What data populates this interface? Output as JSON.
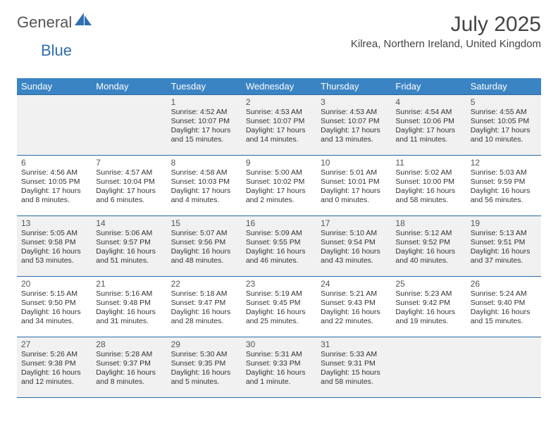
{
  "brand": {
    "part1": "General",
    "part2": "Blue"
  },
  "title": "July 2025",
  "location": "Kilrea, Northern Ireland, United Kingdom",
  "colors": {
    "header_bg": "#3b84c4",
    "header_text": "#ffffff",
    "border": "#2a6aa3",
    "shaded_bg": "#f1f1f1",
    "logo_gray": "#6a6a6a",
    "logo_blue": "#2f6fb0"
  },
  "dow": [
    "Sunday",
    "Monday",
    "Tuesday",
    "Wednesday",
    "Thursday",
    "Friday",
    "Saturday"
  ],
  "weeks": [
    [
      null,
      null,
      {
        "n": "1",
        "sr": "4:52 AM",
        "ss": "10:07 PM",
        "dl": "17 hours and 15 minutes."
      },
      {
        "n": "2",
        "sr": "4:53 AM",
        "ss": "10:07 PM",
        "dl": "17 hours and 14 minutes."
      },
      {
        "n": "3",
        "sr": "4:53 AM",
        "ss": "10:07 PM",
        "dl": "17 hours and 13 minutes."
      },
      {
        "n": "4",
        "sr": "4:54 AM",
        "ss": "10:06 PM",
        "dl": "17 hours and 11 minutes."
      },
      {
        "n": "5",
        "sr": "4:55 AM",
        "ss": "10:05 PM",
        "dl": "17 hours and 10 minutes."
      }
    ],
    [
      {
        "n": "6",
        "sr": "4:56 AM",
        "ss": "10:05 PM",
        "dl": "17 hours and 8 minutes."
      },
      {
        "n": "7",
        "sr": "4:57 AM",
        "ss": "10:04 PM",
        "dl": "17 hours and 6 minutes."
      },
      {
        "n": "8",
        "sr": "4:58 AM",
        "ss": "10:03 PM",
        "dl": "17 hours and 4 minutes."
      },
      {
        "n": "9",
        "sr": "5:00 AM",
        "ss": "10:02 PM",
        "dl": "17 hours and 2 minutes."
      },
      {
        "n": "10",
        "sr": "5:01 AM",
        "ss": "10:01 PM",
        "dl": "17 hours and 0 minutes."
      },
      {
        "n": "11",
        "sr": "5:02 AM",
        "ss": "10:00 PM",
        "dl": "16 hours and 58 minutes."
      },
      {
        "n": "12",
        "sr": "5:03 AM",
        "ss": "9:59 PM",
        "dl": "16 hours and 56 minutes."
      }
    ],
    [
      {
        "n": "13",
        "sr": "5:05 AM",
        "ss": "9:58 PM",
        "dl": "16 hours and 53 minutes."
      },
      {
        "n": "14",
        "sr": "5:06 AM",
        "ss": "9:57 PM",
        "dl": "16 hours and 51 minutes."
      },
      {
        "n": "15",
        "sr": "5:07 AM",
        "ss": "9:56 PM",
        "dl": "16 hours and 48 minutes."
      },
      {
        "n": "16",
        "sr": "5:09 AM",
        "ss": "9:55 PM",
        "dl": "16 hours and 46 minutes."
      },
      {
        "n": "17",
        "sr": "5:10 AM",
        "ss": "9:54 PM",
        "dl": "16 hours and 43 minutes."
      },
      {
        "n": "18",
        "sr": "5:12 AM",
        "ss": "9:52 PM",
        "dl": "16 hours and 40 minutes."
      },
      {
        "n": "19",
        "sr": "5:13 AM",
        "ss": "9:51 PM",
        "dl": "16 hours and 37 minutes."
      }
    ],
    [
      {
        "n": "20",
        "sr": "5:15 AM",
        "ss": "9:50 PM",
        "dl": "16 hours and 34 minutes."
      },
      {
        "n": "21",
        "sr": "5:16 AM",
        "ss": "9:48 PM",
        "dl": "16 hours and 31 minutes."
      },
      {
        "n": "22",
        "sr": "5:18 AM",
        "ss": "9:47 PM",
        "dl": "16 hours and 28 minutes."
      },
      {
        "n": "23",
        "sr": "5:19 AM",
        "ss": "9:45 PM",
        "dl": "16 hours and 25 minutes."
      },
      {
        "n": "24",
        "sr": "5:21 AM",
        "ss": "9:43 PM",
        "dl": "16 hours and 22 minutes."
      },
      {
        "n": "25",
        "sr": "5:23 AM",
        "ss": "9:42 PM",
        "dl": "16 hours and 19 minutes."
      },
      {
        "n": "26",
        "sr": "5:24 AM",
        "ss": "9:40 PM",
        "dl": "16 hours and 15 minutes."
      }
    ],
    [
      {
        "n": "27",
        "sr": "5:26 AM",
        "ss": "9:38 PM",
        "dl": "16 hours and 12 minutes."
      },
      {
        "n": "28",
        "sr": "5:28 AM",
        "ss": "9:37 PM",
        "dl": "16 hours and 8 minutes."
      },
      {
        "n": "29",
        "sr": "5:30 AM",
        "ss": "9:35 PM",
        "dl": "16 hours and 5 minutes."
      },
      {
        "n": "30",
        "sr": "5:31 AM",
        "ss": "9:33 PM",
        "dl": "16 hours and 1 minute."
      },
      {
        "n": "31",
        "sr": "5:33 AM",
        "ss": "9:31 PM",
        "dl": "15 hours and 58 minutes."
      },
      null,
      null
    ]
  ],
  "labels": {
    "sunrise": "Sunrise: ",
    "sunset": "Sunset: ",
    "daylight": "Daylight: "
  },
  "shaded_weeks": [
    0,
    2,
    4
  ]
}
